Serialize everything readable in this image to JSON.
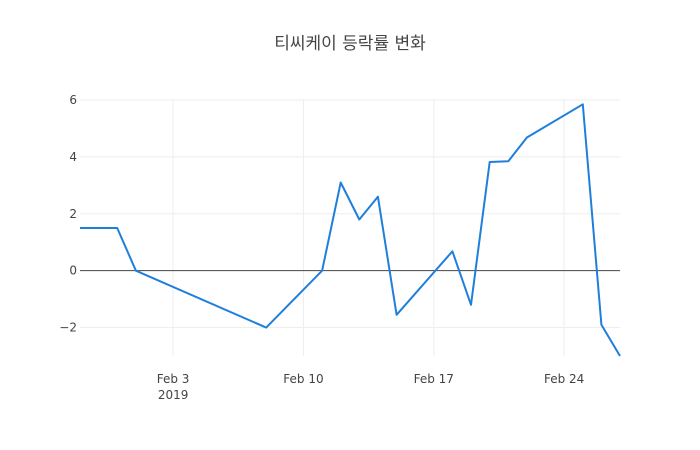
{
  "colors": {
    "series": "#1f7fdb",
    "grid": "#eeeeee",
    "zero_line": "#444444",
    "text": "#444444"
  },
  "chart_data": {
    "type": "line",
    "title": "티씨케이 등락률 변화",
    "xlabel": "",
    "ylabel": "",
    "x_ticks": [
      {
        "date": "2019-02-03",
        "label": "Feb 3",
        "sublabel": "2019"
      },
      {
        "date": "2019-02-10",
        "label": "Feb 10",
        "sublabel": ""
      },
      {
        "date": "2019-02-17",
        "label": "Feb 17",
        "sublabel": ""
      },
      {
        "date": "2019-02-24",
        "label": "Feb 24",
        "sublabel": ""
      }
    ],
    "y_ticks": [
      {
        "value": -2,
        "label": "−2"
      },
      {
        "value": 0,
        "label": "0"
      },
      {
        "value": 2,
        "label": "2"
      },
      {
        "value": 4,
        "label": "4"
      },
      {
        "value": 6,
        "label": "6"
      }
    ],
    "xlim": [
      "2019-01-29",
      "2019-02-27"
    ],
    "ylim": [
      -3.0,
      6.0
    ],
    "grid": true,
    "legend": "none",
    "series": [
      {
        "name": "",
        "x": [
          "2019-01-29",
          "2019-01-31",
          "2019-02-01",
          "2019-02-08",
          "2019-02-11",
          "2019-02-12",
          "2019-02-13",
          "2019-02-14",
          "2019-02-15",
          "2019-02-18",
          "2019-02-19",
          "2019-02-20",
          "2019-02-21",
          "2019-02-22",
          "2019-02-25",
          "2019-02-26",
          "2019-02-27"
        ],
        "y": [
          1.5,
          1.5,
          0.0,
          -2.0,
          0.0,
          3.1,
          1.8,
          2.6,
          -1.55,
          0.68,
          -1.2,
          3.82,
          3.85,
          4.68,
          5.85,
          -1.9,
          -3.0
        ]
      }
    ]
  }
}
